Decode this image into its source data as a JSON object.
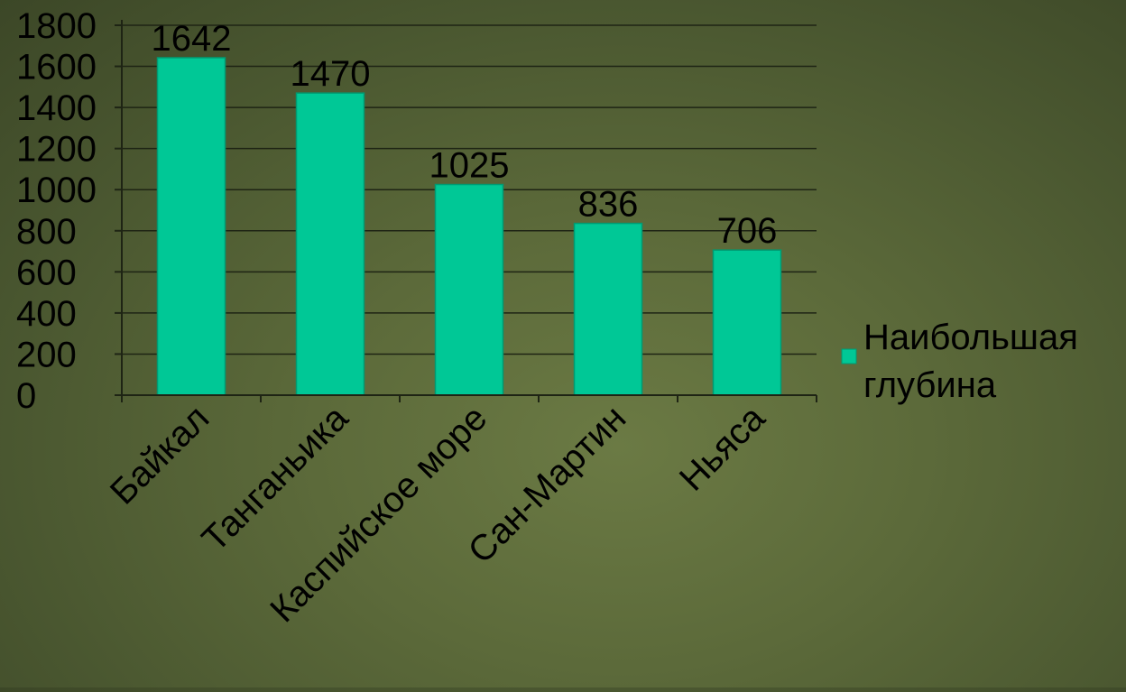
{
  "chart_data": {
    "type": "bar",
    "categories": [
      "Байкал",
      "Танганьика",
      "Каспийское море",
      "Сан-Мартин",
      "Ньяса"
    ],
    "series": [
      {
        "name": "Наибольшая глубина",
        "values": [
          1642,
          1470,
          1025,
          836,
          706
        ]
      }
    ],
    "data_labels": [
      "1642",
      "1470",
      "1025",
      "836",
      "706"
    ],
    "yticks": [
      "0",
      "200",
      "400",
      "600",
      "800",
      "1000",
      "1200",
      "1400",
      "1600",
      "1800"
    ],
    "ylim": [
      0,
      1800
    ],
    "grid": true,
    "legend": {
      "position": "right",
      "lines": [
        "Наибольшая",
        "глубина"
      ]
    },
    "colors": {
      "bar": "#00c896",
      "bar_edge": "#009a72",
      "grid": "#1e2414",
      "text": "#000000"
    }
  }
}
